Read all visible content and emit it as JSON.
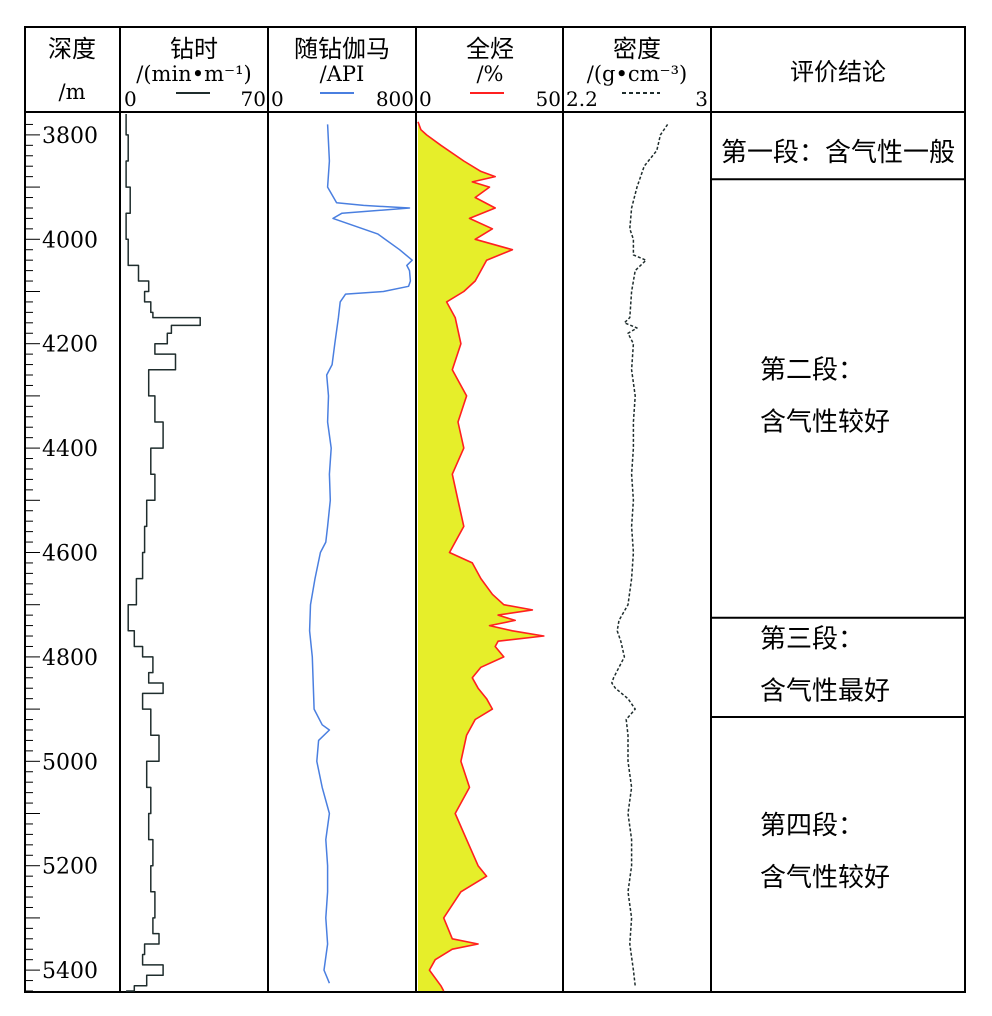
{
  "header": {
    "depth": {
      "title": "深度",
      "unit": "/m"
    },
    "rop": {
      "title": "钻时",
      "unit": "/(min•m⁻¹)",
      "min": "0",
      "max": "70"
    },
    "gamma": {
      "title": "随钻伽马",
      "unit": "/API",
      "min": "0",
      "max": "800"
    },
    "gas": {
      "title": "全烃",
      "unit": "/%",
      "min": "0",
      "max": "50"
    },
    "density": {
      "title": "密度",
      "unit": "/(g•cm⁻³)",
      "min": "2.2",
      "max": "3"
    },
    "conclusion": {
      "title": "评价结论"
    }
  },
  "depth_ticks": [
    "3800",
    "4000",
    "4200",
    "4400",
    "4600",
    "4800",
    "5000",
    "5200",
    "5400"
  ],
  "conclusions": [
    {
      "line1": "第一段：含气性一般",
      "line2": "",
      "top": 3780,
      "bottom": 3885
    },
    {
      "line1": "第二段：",
      "line2": "含气性较好",
      "top": 3885,
      "bottom": 4725
    },
    {
      "line1": "第三段：",
      "line2": "含气性最好",
      "top": 4725,
      "bottom": 4915
    },
    {
      "line1": "第四段：",
      "line2": "含气性较好",
      "top": 4915,
      "bottom": 5440
    }
  ],
  "colors": {
    "rop": "#1f2d2d",
    "gamma": "#4a7fe0",
    "gas_line": "#ff2020",
    "gas_fill": "#e6ee2a",
    "density": "#1f2d2d",
    "border": "#000000"
  },
  "chart_data": {
    "type": "line",
    "y_axis": {
      "label": "深度",
      "unit": "m",
      "range": [
        3760,
        5440
      ],
      "inverted": true
    },
    "series": [
      {
        "name": "钻时",
        "style": "step",
        "x_range": [
          0,
          70
        ],
        "depth": [
          3760,
          3800,
          3850,
          3900,
          3950,
          4000,
          4050,
          4080,
          4100,
          4120,
          4140,
          4150,
          4165,
          4180,
          4200,
          4220,
          4250,
          4300,
          4350,
          4400,
          4450,
          4500,
          4550,
          4600,
          4650,
          4700,
          4750,
          4780,
          4800,
          4830,
          4850,
          4870,
          4900,
          4950,
          5000,
          5050,
          5100,
          5150,
          5200,
          5250,
          5300,
          5330,
          5350,
          5370,
          5390,
          5410,
          5430,
          5440
        ],
        "values": [
          2,
          3,
          2,
          4,
          2,
          3,
          8,
          13,
          11,
          14,
          15,
          38,
          24,
          22,
          16,
          26,
          13,
          16,
          20,
          14,
          16,
          12,
          11,
          10,
          7,
          3,
          6,
          10,
          15,
          13,
          20,
          10,
          14,
          18,
          12,
          14,
          13,
          15,
          14,
          16,
          15,
          18,
          11,
          10,
          20,
          12,
          6,
          2
        ]
      },
      {
        "name": "随钻伽马",
        "x_range": [
          0,
          800
        ],
        "depth": [
          3780,
          3850,
          3900,
          3930,
          3935,
          3940,
          3950,
          3960,
          3990,
          4020,
          4040,
          4050,
          4060,
          4080,
          4090,
          4100,
          4105,
          4120,
          4150,
          4200,
          4240,
          4260,
          4300,
          4350,
          4400,
          4450,
          4500,
          4550,
          4580,
          4600,
          4650,
          4700,
          4750,
          4800,
          4850,
          4900,
          4930,
          4940,
          4960,
          5000,
          5050,
          5100,
          5150,
          5200,
          5250,
          5300,
          5350,
          5400,
          5425
        ],
        "values": [
          320,
          330,
          320,
          370,
          520,
          775,
          400,
          350,
          600,
          720,
          790,
          760,
          775,
          780,
          770,
          630,
          420,
          390,
          380,
          360,
          345,
          315,
          325,
          320,
          340,
          330,
          335,
          320,
          310,
          280,
          250,
          225,
          220,
          235,
          240,
          245,
          290,
          330,
          270,
          260,
          290,
          330,
          310,
          320,
          320,
          310,
          320,
          300,
          330
        ]
      },
      {
        "name": "全烃",
        "style": "area",
        "x_range": [
          0,
          50
        ],
        "depth": [
          3775,
          3790,
          3800,
          3820,
          3850,
          3870,
          3880,
          3890,
          3900,
          3920,
          3940,
          3960,
          3980,
          4000,
          4020,
          4040,
          4060,
          4080,
          4100,
          4120,
          4150,
          4200,
          4250,
          4300,
          4350,
          4400,
          4450,
          4500,
          4550,
          4600,
          4620,
          4650,
          4680,
          4700,
          4710,
          4720,
          4730,
          4740,
          4750,
          4760,
          4770,
          4780,
          4800,
          4820,
          4840,
          4860,
          4880,
          4900,
          4920,
          4950,
          5000,
          5050,
          5100,
          5150,
          5200,
          5220,
          5250,
          5300,
          5340,
          5350,
          5360,
          5380,
          5400,
          5430,
          5440
        ],
        "values": [
          0,
          1,
          3,
          8,
          16,
          22,
          27,
          19,
          25,
          20,
          27,
          18,
          26,
          20,
          33,
          24,
          22,
          20,
          16,
          10,
          13,
          15,
          12,
          17,
          14,
          16,
          12,
          14,
          16,
          11,
          19,
          22,
          26,
          30,
          40,
          28,
          34,
          25,
          33,
          44,
          28,
          27,
          30,
          22,
          19,
          21,
          24,
          26,
          20,
          17,
          15,
          18,
          13,
          17,
          21,
          24,
          15,
          9,
          12,
          21,
          12,
          6,
          4,
          8,
          9
        ]
      },
      {
        "name": "密度",
        "style": "dashed",
        "x_range": [
          2.2,
          3
        ],
        "depth": [
          3780,
          3800,
          3830,
          3860,
          3900,
          3940,
          3980,
          4000,
          4030,
          4040,
          4060,
          4100,
          4150,
          4160,
          4170,
          4180,
          4200,
          4250,
          4300,
          4350,
          4400,
          4450,
          4500,
          4550,
          4600,
          4650,
          4700,
          4730,
          4750,
          4770,
          4800,
          4820,
          4840,
          4850,
          4860,
          4880,
          4900,
          4920,
          4950,
          5000,
          5050,
          5100,
          5150,
          5200,
          5250,
          5300,
          5350,
          5400,
          5430
        ],
        "values": [
          2.77,
          2.73,
          2.71,
          2.64,
          2.6,
          2.57,
          2.56,
          2.58,
          2.58,
          2.65,
          2.59,
          2.57,
          2.56,
          2.53,
          2.6,
          2.55,
          2.58,
          2.57,
          2.59,
          2.58,
          2.58,
          2.57,
          2.58,
          2.57,
          2.58,
          2.57,
          2.55,
          2.5,
          2.49,
          2.51,
          2.53,
          2.5,
          2.47,
          2.46,
          2.48,
          2.55,
          2.59,
          2.54,
          2.55,
          2.55,
          2.57,
          2.55,
          2.57,
          2.57,
          2.55,
          2.57,
          2.56,
          2.58,
          2.59
        ]
      }
    ]
  }
}
